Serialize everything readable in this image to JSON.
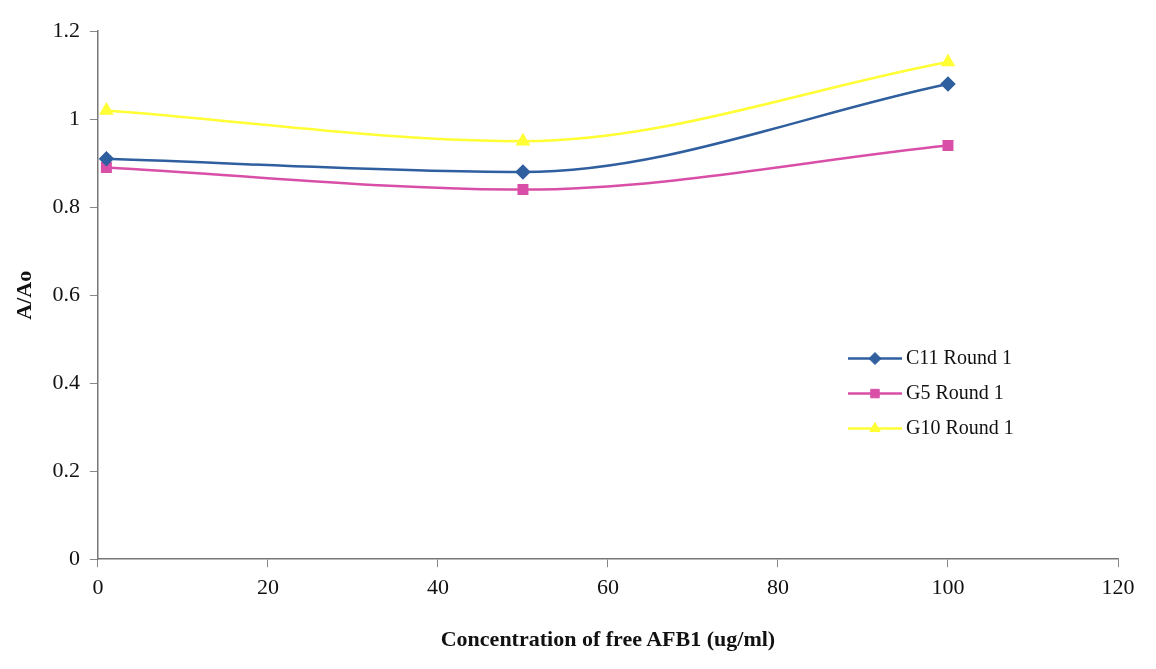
{
  "chart_data": {
    "type": "line",
    "xlabel": "Concentration of free AFB1 (ug/ml)",
    "ylabel": "A/Ao",
    "x": [
      1,
      50,
      100
    ],
    "series": [
      {
        "name": "C11 Round 1",
        "color": "#2f5f9f",
        "marker": "diamond",
        "values": [
          0.91,
          0.88,
          1.08
        ]
      },
      {
        "name": "G5 Round 1",
        "color": "#d94fa8",
        "marker": "square",
        "values": [
          0.89,
          0.84,
          0.94
        ]
      },
      {
        "name": "G10 Round 1",
        "color": "#ffff33",
        "marker": "triangle",
        "values": [
          1.02,
          0.95,
          1.13
        ]
      }
    ],
    "xlim": [
      0,
      120
    ],
    "xticks": [
      0,
      20,
      40,
      60,
      80,
      100,
      120
    ],
    "ylim": [
      0,
      1.2
    ],
    "yticks": [
      0,
      0.2,
      0.4,
      0.6,
      0.8,
      1,
      1.2
    ],
    "grid": false,
    "legend": "right"
  }
}
